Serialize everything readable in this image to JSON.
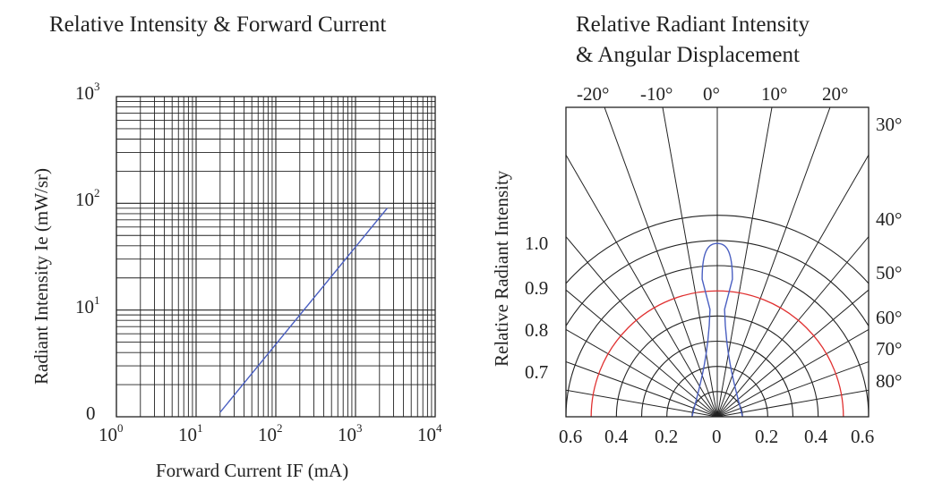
{
  "chart_data": [
    {
      "type": "line",
      "title": "Relative Intensity & Forward Current",
      "xlabel": "Forward Current IF (mA)",
      "ylabel": "Radiant Intensity Ie (mW/sr)",
      "x_scale": "log",
      "y_scale": "log",
      "xlim": [
        1,
        10000
      ],
      "ylim": [
        1,
        1000
      ],
      "x_ticks": [
        {
          "base": "10",
          "exp": "0"
        },
        {
          "base": "10",
          "exp": "1"
        },
        {
          "base": "10",
          "exp": "2"
        },
        {
          "base": "10",
          "exp": "3"
        },
        {
          "base": "10",
          "exp": "4"
        }
      ],
      "y_ticks": [
        {
          "base": "0",
          "exp": ""
        },
        {
          "base": "10",
          "exp": "1"
        },
        {
          "base": "10",
          "exp": "2"
        },
        {
          "base": "10",
          "exp": "3"
        }
      ],
      "grid": true,
      "series": [
        {
          "x": [
            20,
            2500
          ],
          "y": [
            1.1,
            90
          ],
          "color": "#4a5fc1"
        }
      ]
    },
    {
      "type": "polar",
      "title_lines": [
        "Relative Radiant Intensity",
        "& Angular Displacement"
      ],
      "ylabel": "Relative Radiant Intensity",
      "top_angle_labels": [
        "-20°",
        "-10°",
        "0°",
        "10°",
        "20°"
      ],
      "right_angle_labels": [
        "30°",
        "40°",
        "50°",
        "60°",
        "70°",
        "80°"
      ],
      "left_value_labels": [
        "1.0",
        "0.9",
        "0.8",
        "0.7"
      ],
      "bottom_labels": [
        "0.6",
        "0.4",
        "0.2",
        "0",
        "0.2",
        "0.4",
        "0.6"
      ],
      "radial_lines_deg": [
        -80,
        -70,
        -60,
        -50,
        -40,
        -30,
        -20,
        -10,
        0,
        10,
        20,
        30,
        40,
        50,
        60,
        70,
        80
      ],
      "arc_radii": [
        0.1,
        0.2,
        0.3,
        0.4,
        0.5,
        0.6,
        0.7,
        0.8
      ],
      "highlight_arc": {
        "radius": 0.5,
        "color": "#e03030"
      },
      "series": [
        {
          "pattern": "narrow-beam",
          "peak": 1.0,
          "color": "#4a5fc1"
        }
      ],
      "grid": true
    }
  ]
}
